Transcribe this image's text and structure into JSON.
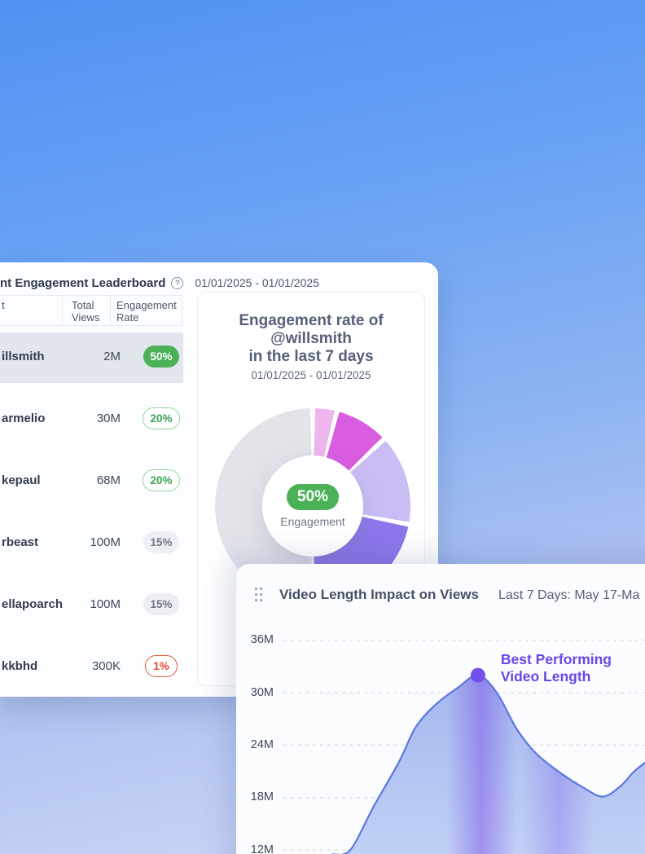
{
  "background": {
    "top_color": "#4f92f2",
    "bottom_color": "#d0dcf8"
  },
  "colors": {
    "badge_green": "#4bb157",
    "badge_green_outline": "#8ed49b",
    "badge_gray_bg": "#edeff4",
    "badge_red": "#e2573c",
    "highlight_row": "#e2e6ed",
    "accent_purple": "#6a46e8"
  },
  "leaderboard_card": {
    "title": "nt Engagement Leaderboard",
    "help_icon": "?",
    "date_range": "01/01/2025 - 01/01/2025",
    "table": {
      "columns": [
        "t",
        "Total Views",
        "Engagement Rate"
      ],
      "rows": [
        {
          "account": "illsmith",
          "total_views": "2M",
          "engagement_rate": "50%",
          "badge_style": "solid-green",
          "highlighted": true
        },
        {
          "account": "armelio",
          "total_views": "30M",
          "engagement_rate": "20%",
          "badge_style": "outline-green",
          "highlighted": false
        },
        {
          "account": "kepaul",
          "total_views": "68M",
          "engagement_rate": "20%",
          "badge_style": "outline-green",
          "highlighted": false
        },
        {
          "account": "rbeast",
          "total_views": "100M",
          "engagement_rate": "15%",
          "badge_style": "gray",
          "highlighted": false
        },
        {
          "account": "ellapoarch",
          "total_views": "100M",
          "engagement_rate": "15%",
          "badge_style": "gray",
          "highlighted": false
        },
        {
          "account": "kkbhd",
          "total_views": "300K",
          "engagement_rate": "1%",
          "badge_style": "outline-red",
          "highlighted": false
        }
      ]
    }
  },
  "donut_panel": {
    "title_line1": "Engagement rate of",
    "title_line2": "@willsmith",
    "title_line3": "in the last 7 days",
    "subtitle": "01/01/2025 - 01/01/2025",
    "center_value": "50%",
    "center_label": "Engagement"
  },
  "video_card": {
    "title": "Video Length Impact on Views",
    "period": "Last 7 Days: May 17-Ma",
    "annotation_line1": "Best Performing",
    "annotation_line2": "Video Length"
  },
  "chart_data": [
    {
      "type": "pie",
      "variant": "donut",
      "title": "Engagement rate of @willsmith in the last 7 days",
      "subtitle": "01/01/2025 - 01/01/2025",
      "center_value": "50%",
      "center_label": "Engagement",
      "start_angle_deg": 0,
      "clockwise": true,
      "slices": [
        {
          "value": 4,
          "color": "#efb5ee"
        },
        {
          "value": 9,
          "color": "#d95ce1"
        },
        {
          "value": 15,
          "color": "#cabdf5"
        },
        {
          "value": 22,
          "color": "#8d76ea"
        },
        {
          "value": 50,
          "color": "#e3e4ea"
        }
      ]
    },
    {
      "type": "area",
      "title": "Video Length Impact on Views",
      "period": "Last 7 Days: May 17-Ma",
      "y_ticks": [
        {
          "label": "36M",
          "value": 36
        },
        {
          "label": "30M",
          "value": 30
        },
        {
          "label": "24M",
          "value": 24
        },
        {
          "label": "18M",
          "value": 18
        },
        {
          "label": "12M",
          "value": 12
        }
      ],
      "y_unit": "M",
      "grid_style": "dashed",
      "points": [
        [
          13.5,
          11.5
        ],
        [
          18.5,
          12
        ],
        [
          25,
          17
        ],
        [
          32,
          22.1
        ],
        [
          36.5,
          26
        ],
        [
          42,
          28.6
        ],
        [
          48,
          30.5
        ],
        [
          53.8,
          32
        ],
        [
          59,
          30
        ],
        [
          64.6,
          25.8
        ],
        [
          70,
          23
        ],
        [
          77,
          20.7
        ],
        [
          82.7,
          19.2
        ],
        [
          88.3,
          18.1
        ],
        [
          93.2,
          19.3
        ],
        [
          96.8,
          20.9
        ],
        [
          100,
          22
        ]
      ],
      "peak_marker": {
        "x": 53.8,
        "value_m": 32
      },
      "annotation": "Best Performing Video Length",
      "line_color": "#5b78e0",
      "fill_color_top": "#9fb4ec",
      "fill_color_bottom": "#c4d3f7",
      "band_color": "#7c52ea",
      "marker_color": "#7450ea",
      "annotation_color": "#6a46e8",
      "grid_color": "#d8dbe3"
    }
  ]
}
